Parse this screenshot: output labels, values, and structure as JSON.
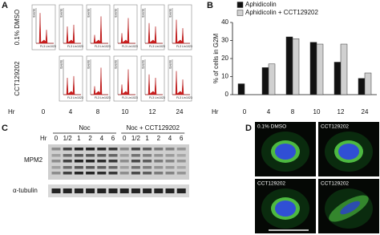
{
  "panel_labels": [
    "A",
    "B",
    "C",
    "D"
  ],
  "flow": {
    "rows": [
      "0.1% DMSO",
      "CCT129202"
    ],
    "hr_label": "Hr",
    "hours": [
      "0",
      "4",
      "8",
      "10",
      "12",
      "24"
    ],
    "axis": {
      "y": "Events",
      "x": "FL3 Lin",
      "max": "1023"
    }
  },
  "chart_data": {
    "type": "bar",
    "y_label": "% of cells in G2M",
    "x_label": "Hr",
    "categories": [
      "0",
      "4",
      "8",
      "10",
      "12",
      "24"
    ],
    "series": [
      {
        "name": "Aphidicolin",
        "color": "#111111",
        "values": [
          6,
          15,
          32,
          29,
          18,
          9
        ]
      },
      {
        "name": "Aphidicolin + CCT129202",
        "color": "#d0d0d0",
        "values": [
          null,
          17,
          31,
          28,
          28,
          12
        ]
      }
    ],
    "ylim": [
      0,
      40
    ],
    "yticks": [
      0,
      10,
      20,
      30,
      40
    ],
    "legend": "top-left"
  },
  "blot": {
    "hr_label": "Hr",
    "groups": [
      "Noc",
      "Noc + CCT129202"
    ],
    "lanes": [
      "0",
      "1/2",
      "1",
      "2",
      "4",
      "6",
      "0",
      "1/2",
      "1",
      "2",
      "4",
      "6"
    ],
    "rows": [
      "MPM2",
      "α-tubulin"
    ]
  },
  "microscopy": {
    "panels": [
      "0.1% DMSO",
      "CCT129202",
      "CCT129202",
      "CCT129202"
    ]
  }
}
